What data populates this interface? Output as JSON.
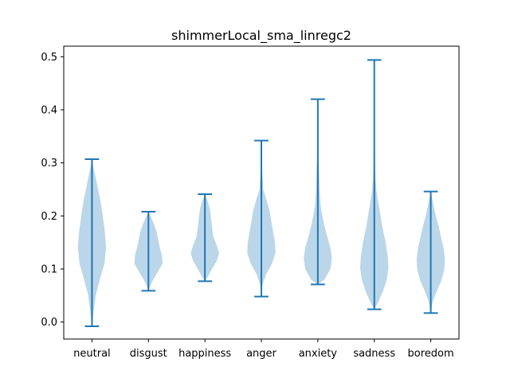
{
  "chart_data": {
    "type": "violin",
    "title": "shimmerLocal_sma_linregc2",
    "xlabel": "",
    "ylabel": "",
    "ylim": [
      -0.032,
      0.52
    ],
    "yticks": [
      "0.0",
      "0.1",
      "0.2",
      "0.3",
      "0.4",
      "0.5"
    ],
    "categories": [
      "neutral",
      "disgust",
      "happiness",
      "anger",
      "anxiety",
      "sadness",
      "boredom"
    ],
    "series": [
      {
        "min": -0.008,
        "max": 0.307,
        "profile": [
          [
            -0.008,
            0
          ],
          [
            0.02,
            0.08
          ],
          [
            0.05,
            0.18
          ],
          [
            0.08,
            0.38
          ],
          [
            0.11,
            0.6
          ],
          [
            0.14,
            0.68
          ],
          [
            0.17,
            0.62
          ],
          [
            0.2,
            0.52
          ],
          [
            0.23,
            0.4
          ],
          [
            0.26,
            0.24
          ],
          [
            0.29,
            0.08
          ],
          [
            0.307,
            0
          ]
        ]
      },
      {
        "min": 0.059,
        "max": 0.208,
        "profile": [
          [
            0.059,
            0
          ],
          [
            0.07,
            0.08
          ],
          [
            0.08,
            0.18
          ],
          [
            0.095,
            0.35
          ],
          [
            0.11,
            0.52
          ],
          [
            0.125,
            0.5
          ],
          [
            0.14,
            0.42
          ],
          [
            0.155,
            0.36
          ],
          [
            0.17,
            0.3
          ],
          [
            0.185,
            0.2
          ],
          [
            0.197,
            0.1
          ],
          [
            0.208,
            0
          ]
        ]
      },
      {
        "min": 0.077,
        "max": 0.241,
        "profile": [
          [
            0.077,
            0
          ],
          [
            0.085,
            0.12
          ],
          [
            0.1,
            0.3
          ],
          [
            0.115,
            0.5
          ],
          [
            0.13,
            0.6
          ],
          [
            0.145,
            0.5
          ],
          [
            0.16,
            0.36
          ],
          [
            0.18,
            0.3
          ],
          [
            0.2,
            0.25
          ],
          [
            0.215,
            0.2
          ],
          [
            0.228,
            0.12
          ],
          [
            0.241,
            0
          ]
        ]
      },
      {
        "min": 0.048,
        "max": 0.342,
        "profile": [
          [
            0.048,
            0
          ],
          [
            0.07,
            0.05
          ],
          [
            0.09,
            0.2
          ],
          [
            0.11,
            0.45
          ],
          [
            0.13,
            0.6
          ],
          [
            0.15,
            0.58
          ],
          [
            0.17,
            0.5
          ],
          [
            0.19,
            0.42
          ],
          [
            0.21,
            0.35
          ],
          [
            0.23,
            0.22
          ],
          [
            0.25,
            0.08
          ],
          [
            0.28,
            0.04
          ],
          [
            0.31,
            0.02
          ],
          [
            0.342,
            0
          ]
        ]
      },
      {
        "min": 0.071,
        "max": 0.42,
        "profile": [
          [
            0.071,
            0
          ],
          [
            0.08,
            0.3
          ],
          [
            0.1,
            0.55
          ],
          [
            0.12,
            0.62
          ],
          [
            0.14,
            0.55
          ],
          [
            0.16,
            0.42
          ],
          [
            0.18,
            0.3
          ],
          [
            0.2,
            0.2
          ],
          [
            0.22,
            0.12
          ],
          [
            0.25,
            0.08
          ],
          [
            0.28,
            0.06
          ],
          [
            0.31,
            0.03
          ],
          [
            0.35,
            0.02
          ],
          [
            0.42,
            0
          ]
        ]
      },
      {
        "min": 0.024,
        "max": 0.494,
        "profile": [
          [
            0.024,
            0
          ],
          [
            0.04,
            0.2
          ],
          [
            0.06,
            0.4
          ],
          [
            0.08,
            0.55
          ],
          [
            0.1,
            0.62
          ],
          [
            0.12,
            0.6
          ],
          [
            0.15,
            0.5
          ],
          [
            0.18,
            0.35
          ],
          [
            0.21,
            0.24
          ],
          [
            0.24,
            0.12
          ],
          [
            0.27,
            0.05
          ],
          [
            0.3,
            0.03
          ],
          [
            0.35,
            0.02
          ],
          [
            0.4,
            0.015
          ],
          [
            0.45,
            0.01
          ],
          [
            0.494,
            0
          ]
        ]
      },
      {
        "min": 0.017,
        "max": 0.246,
        "profile": [
          [
            0.017,
            0
          ],
          [
            0.04,
            0.1
          ],
          [
            0.06,
            0.28
          ],
          [
            0.08,
            0.48
          ],
          [
            0.1,
            0.6
          ],
          [
            0.12,
            0.62
          ],
          [
            0.14,
            0.56
          ],
          [
            0.16,
            0.45
          ],
          [
            0.18,
            0.35
          ],
          [
            0.2,
            0.22
          ],
          [
            0.22,
            0.12
          ],
          [
            0.246,
            0
          ]
        ]
      }
    ],
    "colors": {
      "body": "#1f77b4",
      "body_opacity": 0.3,
      "line": "#1f77b4",
      "axis": "#000000",
      "background": "#ffffff"
    },
    "grid": false,
    "legend": "none"
  }
}
